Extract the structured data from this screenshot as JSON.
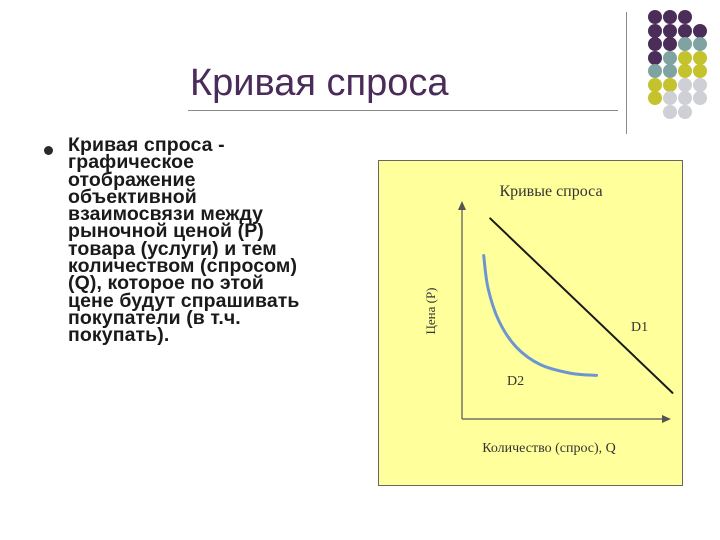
{
  "slide": {
    "title": "Кривая спроса",
    "body": "Кривая спроса - графическое отображение объективной взаимосвязи между рыночной ценой (Р) товара (услуги) и тем количеством (спросом) (Q), которое по этой цене будут спрашивать покупатели (в т.ч. покупать).",
    "body_lines": [
      "Кривая спроса -",
      "графическое",
      "отображение",
      "объективной",
      "взаимосвязи между",
      "рыночной ценой (Р)",
      "товара (услуги) и тем",
      "количеством (спросом)",
      "(Q), которое по этой",
      "цене будут спрашивать",
      "покупатели (в т.ч.",
      "покупать)."
    ]
  },
  "decor": {
    "colors": {
      "purple": "#4b2d5a",
      "teal": "#7fa3a0",
      "olive": "#c4c32e",
      "gray": "#cfcfd6",
      "chart_bg": "#ffff9c",
      "curve": "#6d95d2",
      "title": "#4a2b5a"
    }
  },
  "chart_data": {
    "type": "line",
    "title": "Кривые спроса",
    "xlabel": "Количество (спрос), Q",
    "ylabel": "Цена (Р)",
    "grid": false,
    "legend": "none",
    "series": [
      {
        "name": "D1",
        "shape": "straight line",
        "x": [
          0.13,
          0.97
        ],
        "y": [
          0.92,
          0.12
        ]
      },
      {
        "name": "D2",
        "shape": "convex curve",
        "x": [
          0.1,
          0.12,
          0.17,
          0.25,
          0.36,
          0.5,
          0.62
        ],
        "y": [
          0.75,
          0.6,
          0.45,
          0.33,
          0.25,
          0.21,
          0.2
        ]
      }
    ]
  }
}
